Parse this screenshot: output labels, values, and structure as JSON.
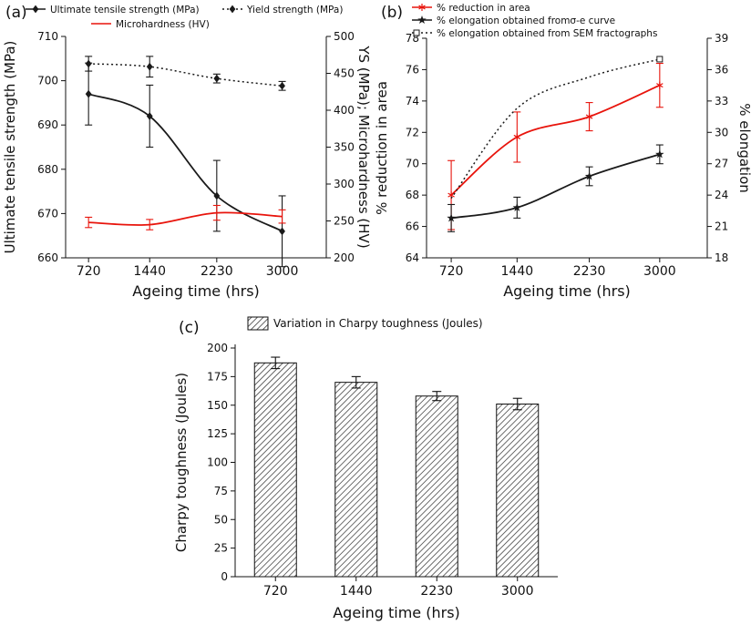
{
  "figure": {
    "background": "#ffffff",
    "text_color": "#111111",
    "accent_red": "#e8140c",
    "accent_black": "#1a1a1a"
  },
  "chart_data": [
    {
      "type": "line",
      "panel_label": "(a)",
      "xlabel": "Ageing time (hrs)",
      "ylabel_left": "Ultimate tensile strength (MPa)",
      "ylabel_right": "YS (MPa); Microhardness (HV)",
      "legend_position": "top",
      "x": [
        720,
        1440,
        2230,
        3000
      ],
      "xlim": [
        450,
        3520
      ],
      "ylim_left": [
        660,
        710
      ],
      "yticks_left": [
        660,
        670,
        680,
        690,
        700,
        710
      ],
      "ylim_right": [
        200,
        500
      ],
      "yticks_right": [
        200,
        250,
        300,
        350,
        400,
        450,
        500
      ],
      "series": [
        {
          "name": "Ultimate tensile strength (MPa)",
          "axis": "left",
          "color": "#1a1a1a",
          "line": "solid",
          "marker": "diamond",
          "values": [
            697,
            692,
            674,
            666
          ],
          "errors": [
            7,
            7,
            8,
            8
          ]
        },
        {
          "name": "Yield strength (MPa)",
          "axis": "right",
          "color": "#1a1a1a",
          "line": "dotted",
          "marker": "diamond",
          "values": [
            463,
            459,
            443,
            433
          ],
          "errors": [
            10,
            14,
            6,
            6
          ]
        },
        {
          "name": "Microhardness (HV)",
          "axis": "right",
          "color": "#e8140c",
          "line": "solid",
          "marker": "none",
          "values": [
            248,
            245,
            261,
            256
          ],
          "errors": [
            7,
            7,
            10,
            9
          ]
        }
      ]
    },
    {
      "type": "line",
      "panel_label": "(b)",
      "xlabel": "Ageing time (hrs)",
      "ylabel_left": "% reduction in area",
      "ylabel_right": "% elongation",
      "legend_position": "top",
      "x": [
        720,
        1440,
        2230,
        3000
      ],
      "xlim": [
        450,
        3520
      ],
      "ylim_left": [
        64,
        78
      ],
      "yticks_left": [
        64,
        66,
        68,
        70,
        72,
        74,
        76,
        78
      ],
      "ylim_right": [
        18,
        39
      ],
      "yticks_right": [
        18,
        21,
        24,
        27,
        30,
        33,
        36,
        39
      ],
      "series": [
        {
          "name": "% reduction in area",
          "axis": "left",
          "color": "#e8140c",
          "line": "solid",
          "marker": "asterisk",
          "values": [
            68,
            71.7,
            73,
            75
          ],
          "errors": [
            2.2,
            1.6,
            0.9,
            1.4
          ]
        },
        {
          "name": "% elongation obtained fromσ-e curve",
          "axis": "right",
          "color": "#1a1a1a",
          "line": "solid",
          "marker": "star",
          "values": [
            21.8,
            22.8,
            25.8,
            27.9
          ],
          "errors": [
            1.3,
            1.0,
            0.9,
            0.9
          ]
        },
        {
          "name": "% elongation obtained from SEM fractographs",
          "axis": "right",
          "color": "#1a1a1a",
          "line": "dotted",
          "marker": "osquare",
          "marker_last_only": true,
          "values": [
            23.7,
            32.3,
            35.3,
            37.0
          ],
          "errors": [
            0,
            0,
            0,
            0
          ]
        }
      ]
    },
    {
      "type": "bar",
      "panel_label": "(c)",
      "legend": "Variation in Charpy toughness (Joules)",
      "xlabel": "Ageing time (hrs)",
      "ylabel": "Charpy toughness (Joules)",
      "categories": [
        "720",
        "1440",
        "2230",
        "3000"
      ],
      "values": [
        187,
        170,
        158,
        151
      ],
      "errors": [
        5,
        5,
        4,
        5
      ],
      "ylim": [
        0,
        200
      ],
      "yticks": [
        0,
        25,
        50,
        75,
        100,
        125,
        150,
        175,
        200
      ],
      "bar_fill": "hatched"
    }
  ]
}
